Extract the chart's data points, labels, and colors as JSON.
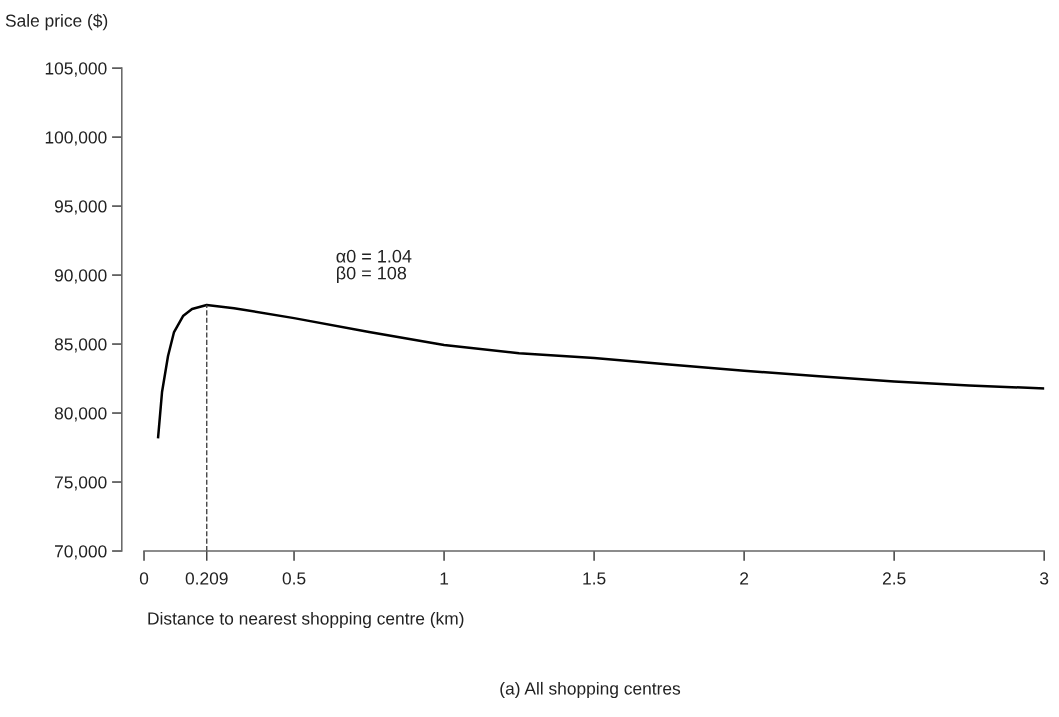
{
  "chart_data": {
    "type": "line",
    "title": "(a) All shopping centres",
    "xlabel": "Distance to nearest shopping centre (km)",
    "ylabel": "Sale price ($)",
    "annotations": [
      "α0 = 1.04\nβ0 = 108"
    ],
    "series": [
      {
        "color": "#000000",
        "x": [
          0.047,
          0.06,
          0.08,
          0.1,
          0.13,
          0.16,
          0.209,
          0.3,
          0.5,
          0.75,
          1.0,
          1.25,
          1.5,
          1.75,
          2.0,
          2.25,
          2.5,
          2.75,
          3.0
        ],
        "values": [
          78260,
          81520,
          84130,
          85870,
          87030,
          87540,
          87830,
          87600,
          86880,
          85870,
          84930,
          84330,
          83990,
          83520,
          83070,
          82660,
          82280,
          82000,
          81780
        ]
      }
    ],
    "xlim": [
      0,
      3
    ],
    "ylim": [
      70000,
      105000
    ],
    "xticks": [
      0,
      0.209,
      0.5,
      1,
      1.5,
      2,
      2.5,
      3
    ],
    "yticks": [
      {
        "value": 70000,
        "label": "70,000"
      },
      {
        "value": 75000,
        "label": "75,000"
      },
      {
        "value": 80000,
        "label": "80,000"
      },
      {
        "value": 85000,
        "label": "85,000"
      },
      {
        "value": 90000,
        "label": "90,000"
      },
      {
        "value": 95000,
        "label": "95,000"
      },
      {
        "value": 100000,
        "label": "100,000"
      },
      {
        "value": 105000,
        "label": "105,000"
      }
    ],
    "ref_lines": [
      {
        "axis": "x",
        "value": 0.209,
        "line_style": "dashed"
      }
    ],
    "grid": false,
    "marker": "none",
    "line_style": "solid"
  }
}
